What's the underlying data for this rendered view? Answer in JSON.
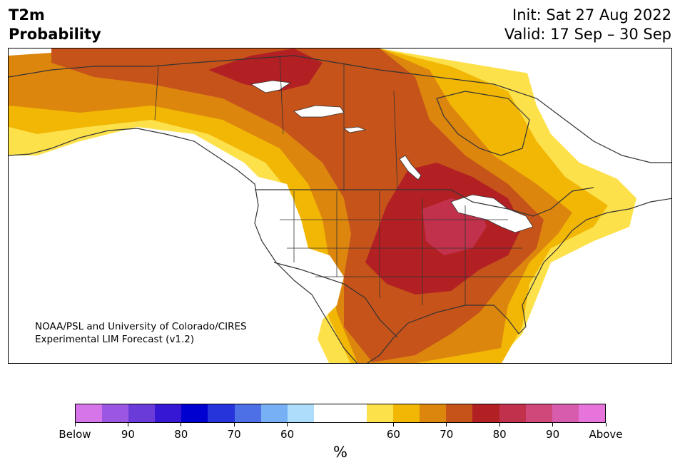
{
  "header": {
    "title_line1": "T2m",
    "title_line2": "Probability",
    "init_text": "Init: Sat 27 Aug 2022",
    "valid_text": "Valid: 17 Sep – 30 Sep"
  },
  "map": {
    "region": "North America",
    "credit_line1": "NOAA/PSL and University of Colorado/CIRES",
    "credit_line2": "Experimental LIM Forecast (v1.2)",
    "colors": {
      "land_background": "#ffffff",
      "neutral": "#ffffff",
      "above_60": "#fde14b",
      "above_65": "#f2b705",
      "above_70": "#dd860e",
      "above_75": "#c5531a",
      "above_80": "#b22024",
      "above_85": "#c2314b",
      "below_60": "#aedcfb",
      "lakes_water": "#ffffff",
      "borders": "#333333"
    }
  },
  "colorbar": {
    "colors": [
      "#d675e9",
      "#9c57e2",
      "#6a3bd8",
      "#3618d4",
      "#0000d0",
      "#2535db",
      "#4d70e7",
      "#77b0f4",
      "#aedcfb",
      "#ffffff",
      "#ffffff",
      "#fde14b",
      "#f2b705",
      "#dd860e",
      "#c5531a",
      "#b22024",
      "#c2314b",
      "#cf4879",
      "#d75cad",
      "#e674da"
    ],
    "tick_labels": [
      "Below",
      "90",
      "80",
      "70",
      "60",
      "60",
      "70",
      "80",
      "90",
      "Above"
    ],
    "unit_label": "%"
  }
}
